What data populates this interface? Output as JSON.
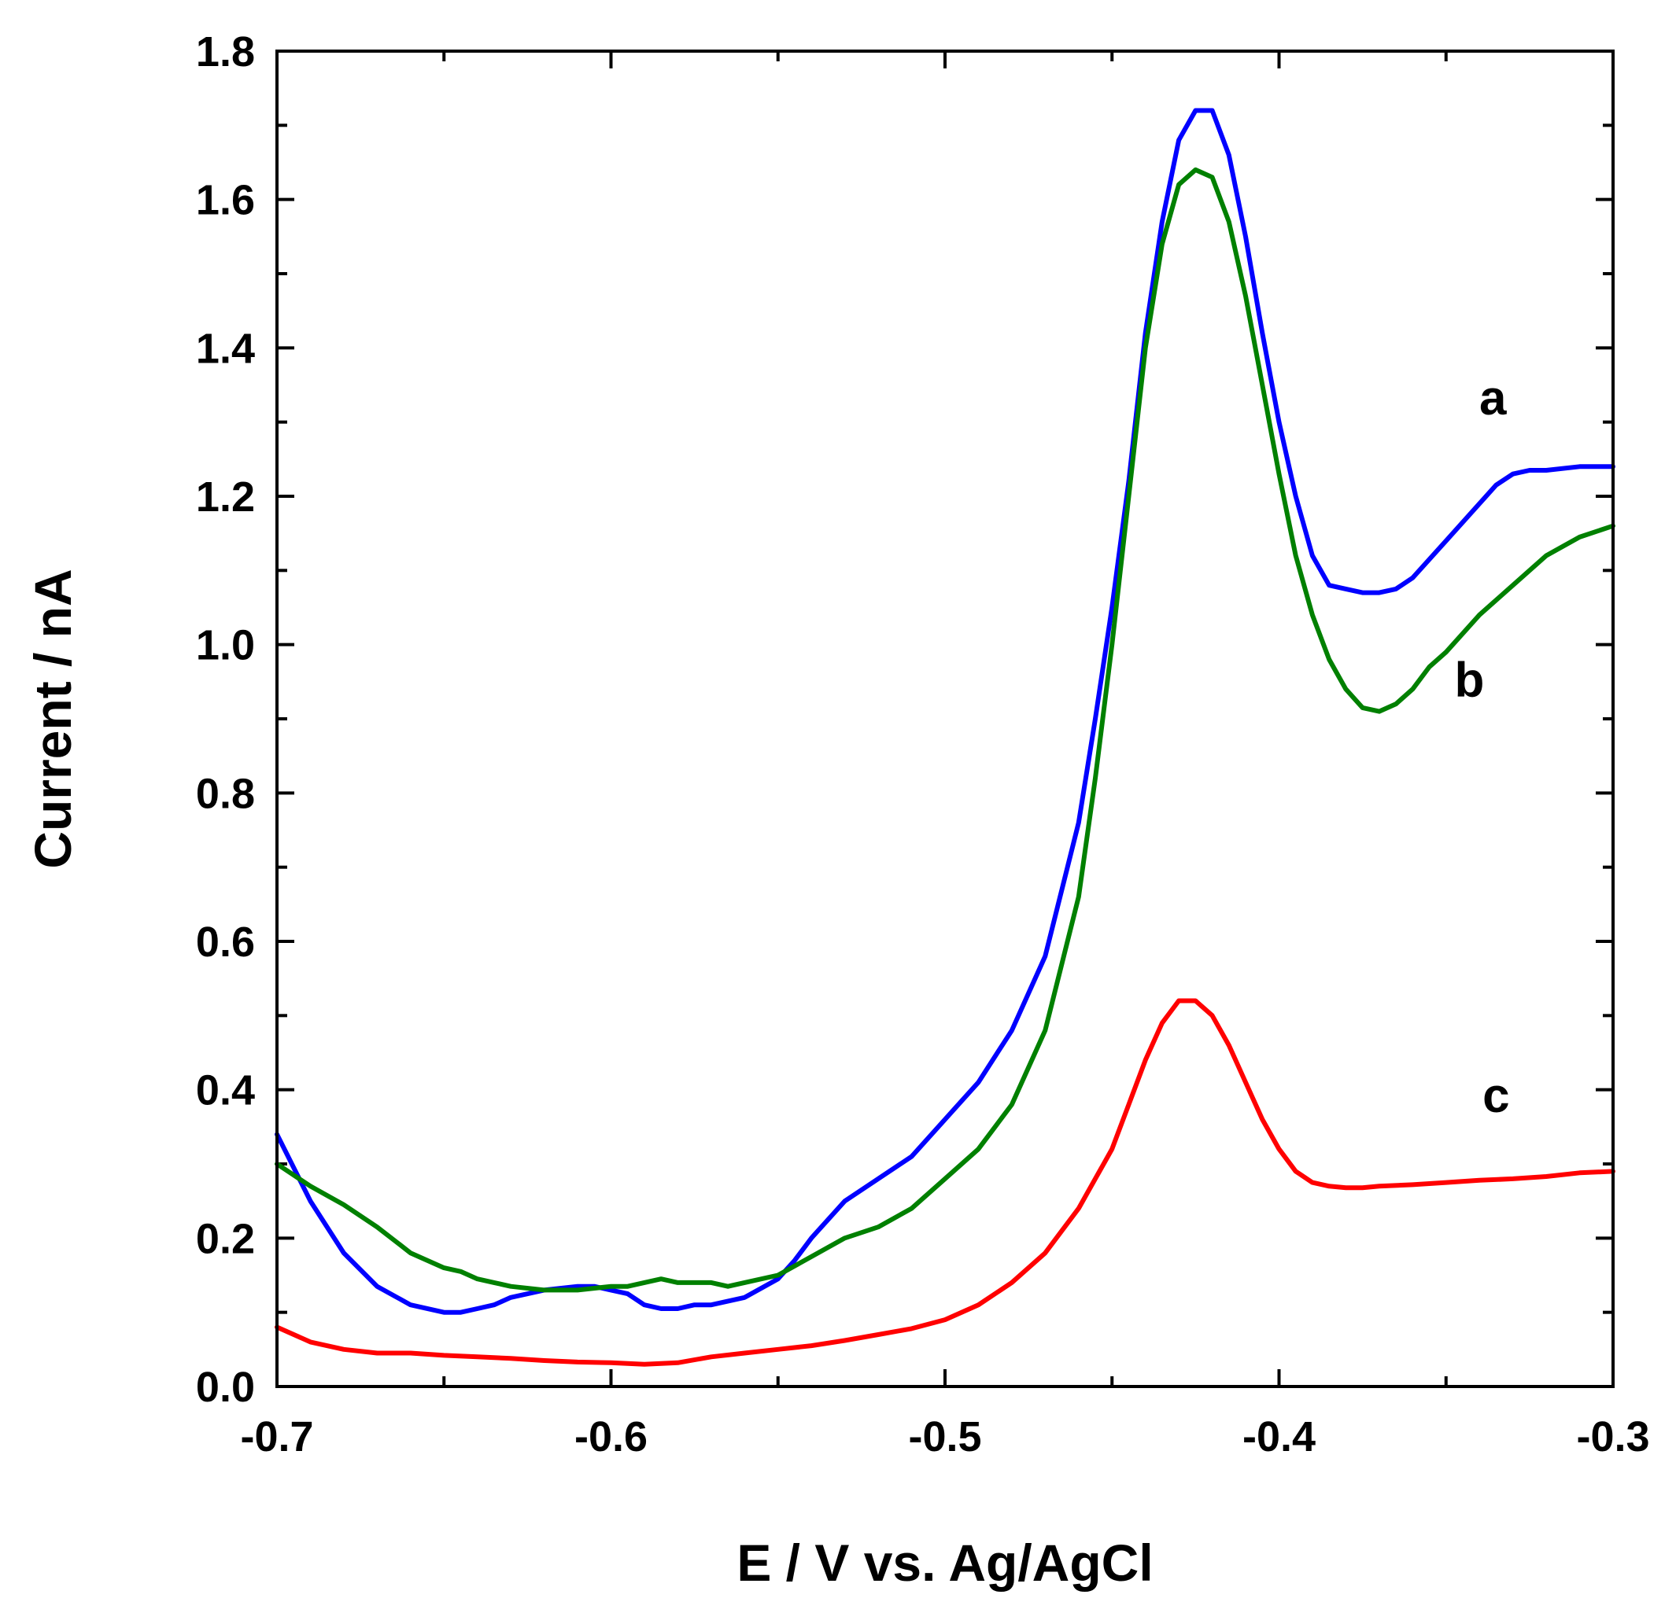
{
  "chart_data": {
    "type": "line",
    "title": "",
    "xlabel": "E / V vs. Ag/AgCl",
    "ylabel": "Current / nA",
    "xlim": [
      -0.7,
      -0.3
    ],
    "ylim": [
      0.0,
      1.8
    ],
    "x_ticks": [
      -0.7,
      -0.6,
      -0.5,
      -0.4,
      -0.3
    ],
    "x_tick_labels": [
      "-0.7",
      "-0.6",
      "-0.5",
      "-0.4",
      "-0.3"
    ],
    "y_ticks": [
      0.0,
      0.2,
      0.4,
      0.6,
      0.8,
      1.0,
      1.2,
      1.4,
      1.6,
      1.8
    ],
    "y_tick_labels": [
      "0.0",
      "0.2",
      "0.4",
      "0.6",
      "0.8",
      "1.0",
      "1.2",
      "1.4",
      "1.6",
      "1.8"
    ],
    "grid": false,
    "series": [
      {
        "name": "a",
        "label": "a",
        "color": "#0000ff",
        "label_pos": [
          -0.336,
          1.31
        ],
        "x": [
          -0.7,
          -0.69,
          -0.68,
          -0.67,
          -0.66,
          -0.65,
          -0.645,
          -0.64,
          -0.635,
          -0.63,
          -0.62,
          -0.61,
          -0.605,
          -0.6,
          -0.595,
          -0.59,
          -0.585,
          -0.58,
          -0.575,
          -0.57,
          -0.56,
          -0.55,
          -0.545,
          -0.54,
          -0.53,
          -0.52,
          -0.51,
          -0.5,
          -0.49,
          -0.48,
          -0.47,
          -0.46,
          -0.455,
          -0.45,
          -0.445,
          -0.44,
          -0.435,
          -0.43,
          -0.425,
          -0.42,
          -0.415,
          -0.41,
          -0.405,
          -0.4,
          -0.395,
          -0.39,
          -0.385,
          -0.38,
          -0.375,
          -0.37,
          -0.365,
          -0.36,
          -0.35,
          -0.34,
          -0.335,
          -0.33,
          -0.325,
          -0.32,
          -0.31,
          -0.3
        ],
        "y": [
          0.34,
          0.25,
          0.18,
          0.135,
          0.11,
          0.1,
          0.1,
          0.105,
          0.11,
          0.12,
          0.13,
          0.135,
          0.135,
          0.13,
          0.125,
          0.11,
          0.105,
          0.105,
          0.11,
          0.11,
          0.12,
          0.145,
          0.17,
          0.2,
          0.25,
          0.28,
          0.31,
          0.36,
          0.41,
          0.48,
          0.58,
          0.76,
          0.9,
          1.05,
          1.22,
          1.42,
          1.57,
          1.68,
          1.72,
          1.72,
          1.66,
          1.55,
          1.42,
          1.3,
          1.2,
          1.12,
          1.08,
          1.075,
          1.07,
          1.07,
          1.075,
          1.09,
          1.14,
          1.19,
          1.215,
          1.23,
          1.235,
          1.235,
          1.24,
          1.24
        ]
      },
      {
        "name": "b",
        "label": "b",
        "color": "#008000",
        "label_pos": [
          -0.343,
          0.93
        ],
        "x": [
          -0.7,
          -0.69,
          -0.68,
          -0.67,
          -0.66,
          -0.65,
          -0.645,
          -0.64,
          -0.635,
          -0.63,
          -0.62,
          -0.61,
          -0.6,
          -0.595,
          -0.59,
          -0.585,
          -0.58,
          -0.575,
          -0.57,
          -0.565,
          -0.56,
          -0.55,
          -0.54,
          -0.53,
          -0.52,
          -0.51,
          -0.5,
          -0.49,
          -0.48,
          -0.47,
          -0.46,
          -0.455,
          -0.45,
          -0.445,
          -0.44,
          -0.435,
          -0.43,
          -0.425,
          -0.42,
          -0.415,
          -0.41,
          -0.405,
          -0.4,
          -0.395,
          -0.39,
          -0.385,
          -0.38,
          -0.375,
          -0.37,
          -0.365,
          -0.36,
          -0.355,
          -0.35,
          -0.34,
          -0.33,
          -0.32,
          -0.31,
          -0.3
        ],
        "y": [
          0.3,
          0.27,
          0.245,
          0.215,
          0.18,
          0.16,
          0.155,
          0.145,
          0.14,
          0.135,
          0.13,
          0.13,
          0.135,
          0.135,
          0.14,
          0.145,
          0.14,
          0.14,
          0.14,
          0.135,
          0.14,
          0.15,
          0.175,
          0.2,
          0.215,
          0.24,
          0.28,
          0.32,
          0.38,
          0.48,
          0.66,
          0.82,
          1.0,
          1.2,
          1.4,
          1.54,
          1.62,
          1.64,
          1.63,
          1.57,
          1.47,
          1.35,
          1.23,
          1.12,
          1.04,
          0.98,
          0.94,
          0.915,
          0.91,
          0.92,
          0.94,
          0.97,
          0.99,
          1.04,
          1.08,
          1.12,
          1.145,
          1.16
        ]
      },
      {
        "name": "c",
        "label": "c",
        "color": "#ff0000",
        "label_pos": [
          -0.335,
          0.37
        ],
        "x": [
          -0.7,
          -0.69,
          -0.68,
          -0.67,
          -0.66,
          -0.65,
          -0.64,
          -0.63,
          -0.62,
          -0.61,
          -0.6,
          -0.59,
          -0.58,
          -0.57,
          -0.56,
          -0.55,
          -0.54,
          -0.53,
          -0.52,
          -0.51,
          -0.5,
          -0.49,
          -0.48,
          -0.47,
          -0.46,
          -0.45,
          -0.445,
          -0.44,
          -0.435,
          -0.43,
          -0.425,
          -0.42,
          -0.415,
          -0.41,
          -0.405,
          -0.4,
          -0.395,
          -0.39,
          -0.385,
          -0.38,
          -0.375,
          -0.37,
          -0.36,
          -0.35,
          -0.34,
          -0.33,
          -0.32,
          -0.31,
          -0.3
        ],
        "y": [
          0.08,
          0.06,
          0.05,
          0.045,
          0.045,
          0.042,
          0.04,
          0.038,
          0.035,
          0.033,
          0.032,
          0.03,
          0.032,
          0.04,
          0.045,
          0.05,
          0.055,
          0.062,
          0.07,
          0.078,
          0.09,
          0.11,
          0.14,
          0.18,
          0.24,
          0.32,
          0.38,
          0.44,
          0.49,
          0.52,
          0.52,
          0.5,
          0.46,
          0.41,
          0.36,
          0.32,
          0.29,
          0.275,
          0.27,
          0.268,
          0.268,
          0.27,
          0.272,
          0.275,
          0.278,
          0.28,
          0.283,
          0.288,
          0.29
        ]
      }
    ]
  }
}
